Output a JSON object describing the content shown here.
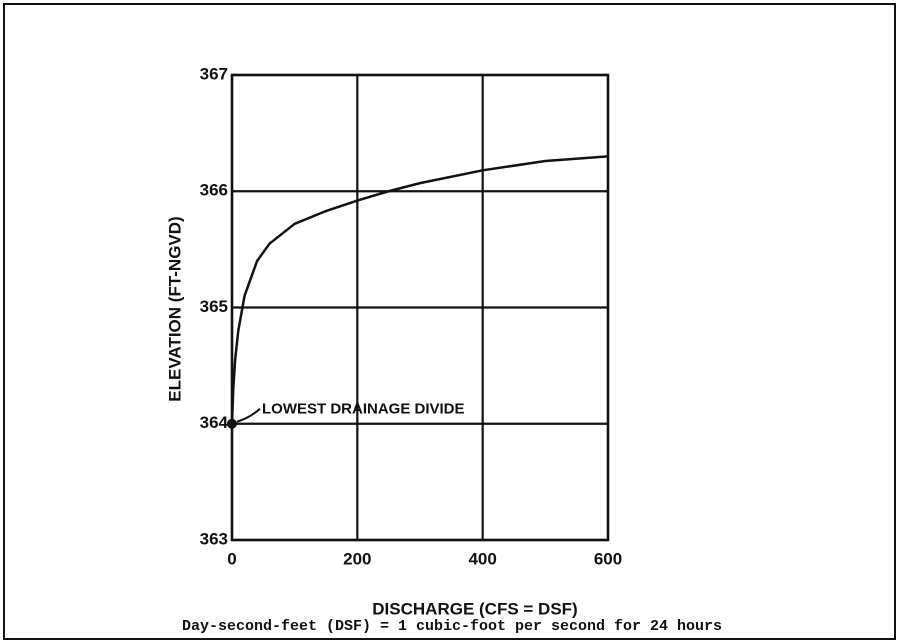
{
  "chart_data": {
    "type": "line",
    "x_label": "DISCHARGE (CFS = DSF)",
    "y_label": "ELEVATION (FT-NGVD)",
    "annotation": "LOWEST DRAINAGE DIVIDE",
    "footnote": "Day-second-feet (DSF) = 1 cubic-foot per second for 24 hours",
    "x": [
      0,
      2,
      5,
      10,
      20,
      40,
      60,
      100,
      150,
      200,
      250,
      300,
      400,
      500,
      600
    ],
    "values": [
      364,
      364.3,
      364.55,
      364.8,
      365.1,
      365.4,
      365.55,
      365.72,
      365.83,
      365.92,
      366.0,
      366.07,
      366.18,
      366.26,
      366.3
    ],
    "color": "#111111",
    "xlim": [
      0,
      600
    ],
    "ylim": [
      363,
      367
    ],
    "xticks": [
      0,
      200,
      400,
      600
    ],
    "yticks": [
      363,
      364,
      365,
      366,
      367
    ],
    "grid": true
  }
}
